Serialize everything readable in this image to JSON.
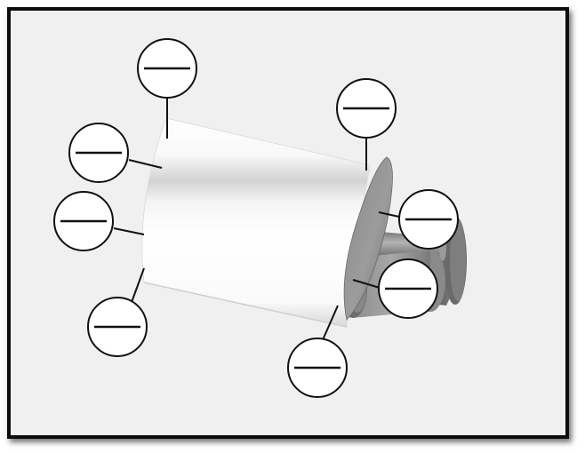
{
  "diagram": {
    "background_color": "#f0f0f0",
    "callout_count": 8,
    "callouts": [
      {
        "id": "upper-left-top",
        "label": ""
      },
      {
        "id": "upper-left-middle",
        "label": ""
      },
      {
        "id": "left-middle",
        "label": ""
      },
      {
        "id": "lower-left",
        "label": ""
      },
      {
        "id": "top-right",
        "label": ""
      },
      {
        "id": "right-upper",
        "label": ""
      },
      {
        "id": "right-lower",
        "label": ""
      },
      {
        "id": "bottom-center",
        "label": ""
      }
    ]
  }
}
